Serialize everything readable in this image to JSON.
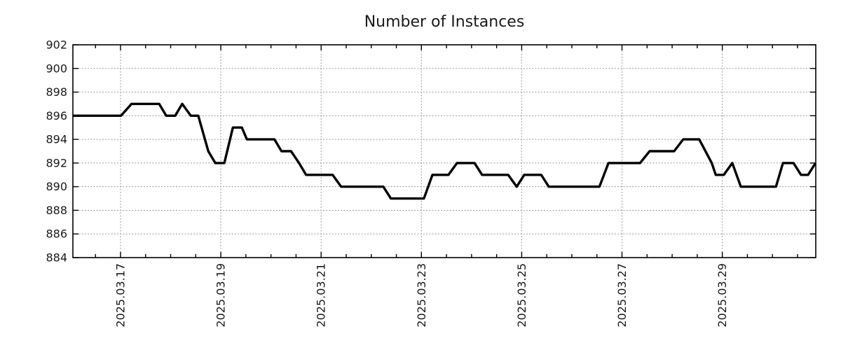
{
  "chart_data": {
    "type": "line",
    "title": "Number of Instances",
    "xlabel": "",
    "ylabel": "",
    "x_unit": "days since 2025-03-17 00:00",
    "x_range_days": [
      -0.95,
      13.864
    ],
    "y_range": [
      884,
      902
    ],
    "y_ticks": [
      884,
      886,
      888,
      890,
      892,
      894,
      896,
      898,
      900,
      902
    ],
    "x_ticks": [
      {
        "pos": 0,
        "label": "2025.03.17"
      },
      {
        "pos": 2,
        "label": "2025.03.19"
      },
      {
        "pos": 4,
        "label": "2025.03.21"
      },
      {
        "pos": 6,
        "label": "2025.03.23"
      },
      {
        "pos": 8,
        "label": "2025.03.25"
      },
      {
        "pos": 10,
        "label": "2025.03.27"
      },
      {
        "pos": 12,
        "label": "2025.03.29"
      }
    ],
    "x_minor_tick_interval_days": 0.5,
    "grid": true,
    "legend": "none",
    "colors": {
      "line": "#000000",
      "grid": "#9b9b9b",
      "axis": "#000000",
      "text": "#1a1a1a",
      "background": "#ffffff"
    },
    "series": [
      {
        "name": "instances",
        "color": "#000000",
        "points": [
          [
            -0.95,
            896
          ],
          [
            0.01,
            896
          ],
          [
            0.22,
            897
          ],
          [
            0.77,
            897
          ],
          [
            0.91,
            896
          ],
          [
            1.09,
            896
          ],
          [
            1.23,
            897
          ],
          [
            1.4,
            896
          ],
          [
            1.55,
            896
          ],
          [
            1.75,
            893
          ],
          [
            1.89,
            892
          ],
          [
            2.07,
            892
          ],
          [
            2.24,
            895
          ],
          [
            2.42,
            895
          ],
          [
            2.52,
            894
          ],
          [
            3.07,
            894
          ],
          [
            3.21,
            893
          ],
          [
            3.4,
            893
          ],
          [
            3.56,
            892
          ],
          [
            3.7,
            891
          ],
          [
            4.23,
            891
          ],
          [
            4.4,
            890
          ],
          [
            5.24,
            890
          ],
          [
            5.39,
            889
          ],
          [
            6.05,
            889
          ],
          [
            6.22,
            891
          ],
          [
            6.54,
            891
          ],
          [
            6.71,
            892
          ],
          [
            7.06,
            892
          ],
          [
            7.21,
            891
          ],
          [
            7.73,
            891
          ],
          [
            7.9,
            890
          ],
          [
            8.05,
            891
          ],
          [
            8.39,
            891
          ],
          [
            8.54,
            890
          ],
          [
            9.55,
            890
          ],
          [
            9.73,
            892
          ],
          [
            10.36,
            892
          ],
          [
            10.55,
            893
          ],
          [
            11.04,
            893
          ],
          [
            11.22,
            894
          ],
          [
            11.54,
            894
          ],
          [
            11.79,
            892
          ],
          [
            11.87,
            891
          ],
          [
            12.03,
            891
          ],
          [
            12.2,
            892
          ],
          [
            12.37,
            890
          ],
          [
            13.07,
            890
          ],
          [
            13.21,
            892
          ],
          [
            13.42,
            892
          ],
          [
            13.57,
            891
          ],
          [
            13.71,
            891
          ],
          [
            13.86,
            892
          ]
        ]
      }
    ]
  }
}
